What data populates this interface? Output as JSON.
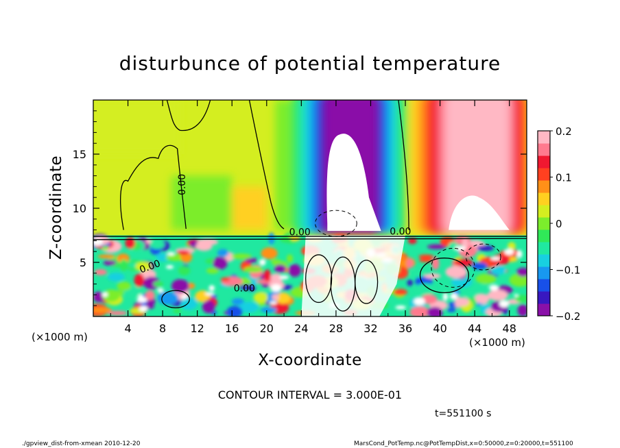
{
  "figure": {
    "title": "disturbunce of potential temperature",
    "contour_interval": "CONTOUR INTERVAL = 3.000E-01",
    "time_label": "t=551100 s",
    "footer_left": "./gpview_dist-from-xmean 2010-12-20",
    "footer_right": "MarsCond_PotTemp.nc@PotTempDist,x=0:50000,z=0:20000,t=551100"
  },
  "chart_data": {
    "type": "heatmap",
    "title": "disturbunce of potential temperature",
    "xlabel": "X-coordinate",
    "ylabel": "Z-coordinate",
    "x_unit_label": "(×1000 m)",
    "z_unit_label": "(×1000 m)",
    "xlim": [
      0,
      50
    ],
    "ylim": [
      0,
      20
    ],
    "x_ticks": [
      4,
      8,
      12,
      16,
      20,
      24,
      28,
      32,
      36,
      40,
      44,
      48
    ],
    "y_ticks": [
      5,
      10,
      15
    ],
    "colorbar": {
      "min": -0.2,
      "max": 0.2,
      "ticks": [
        0.2,
        0.1,
        0,
        -0.1,
        -0.2
      ],
      "tick_labels": [
        "0.2",
        "0.1",
        "0",
        "−0.1",
        "−0.2"
      ],
      "colors": [
        "#8a10a8",
        "#3818c0",
        "#1850e8",
        "#1898f0",
        "#18d0e0",
        "#20e8a0",
        "#30e858",
        "#7ced2c",
        "#d4ee20",
        "#ffd020",
        "#ff9018",
        "#ff4020",
        "#f01830",
        "#ff7a8e",
        "#ffb8c4"
      ]
    },
    "contour_labels": [
      "0.00",
      "0.00",
      "0.00",
      "0.00",
      "0.00"
    ],
    "field_estimate": [
      {
        "x_range": [
          0,
          23
        ],
        "z_range": [
          7.5,
          20
        ],
        "value": 0.02
      },
      {
        "x_range": [
          25,
          35
        ],
        "z_range": [
          8,
          20
        ],
        "value": -0.2
      },
      {
        "x_range": [
          39,
          49
        ],
        "z_range": [
          8,
          20
        ],
        "value": 0.2
      },
      {
        "x_range": [
          0,
          50
        ],
        "z_range": [
          0,
          7.5
        ],
        "value": 0.0
      }
    ]
  }
}
